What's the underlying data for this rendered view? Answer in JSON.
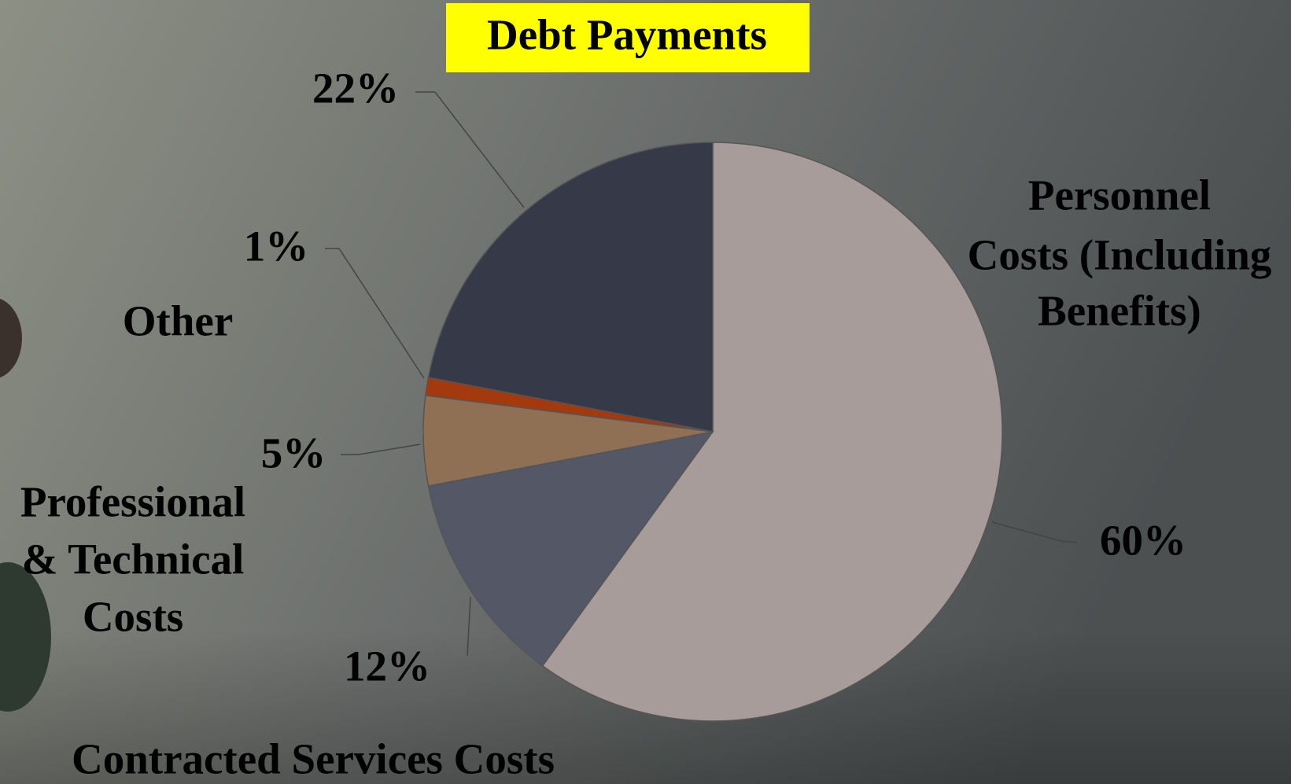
{
  "chart_data": {
    "type": "pie",
    "categories": [
      [
        "Personnel",
        "Costs (Including",
        "Benefits)"
      ],
      [
        "Contracted Services Costs"
      ],
      [
        "Professional",
        "& Technical",
        "Costs"
      ],
      [
        "Other"
      ],
      [
        "Debt Payments"
      ]
    ],
    "values": [
      60,
      12,
      5,
      1,
      22
    ],
    "value_labels": [
      "60%",
      "12%",
      "5%",
      "1%",
      "22%"
    ],
    "colors": [
      "#a89c9a",
      "#535766",
      "#8f7055",
      "#a3390c",
      "#363a48"
    ]
  }
}
